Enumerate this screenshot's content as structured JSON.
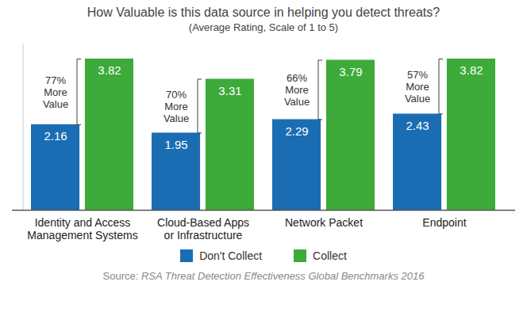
{
  "chart_data": {
    "type": "bar",
    "title": "How Valuable is this data source in helping you detect threats?",
    "subtitle": "(Average Rating, Scale of 1 to 5)",
    "categories": [
      "Identity and Access Management Systems",
      "Cloud-Based Apps or Infrastructure",
      "Network Packet",
      "Endpoint"
    ],
    "series": [
      {
        "name": "Don't Collect",
        "color": "#1b6db3",
        "values": [
          2.16,
          1.95,
          2.29,
          2.43
        ]
      },
      {
        "name": "Collect",
        "color": "#3daa3a",
        "values": [
          3.82,
          3.31,
          3.79,
          3.82
        ]
      }
    ],
    "annotations": [
      "77% More Value",
      "70% More Value",
      "66% More Value",
      "57% More Value"
    ],
    "source_label": "Source:",
    "source": "RSA Threat Detection Effectiveness Global Benchmarks 2016",
    "ylim": [
      0,
      4.2
    ],
    "grid": false,
    "data_labels": true,
    "tick_labels": "x",
    "legend": "bottom"
  }
}
